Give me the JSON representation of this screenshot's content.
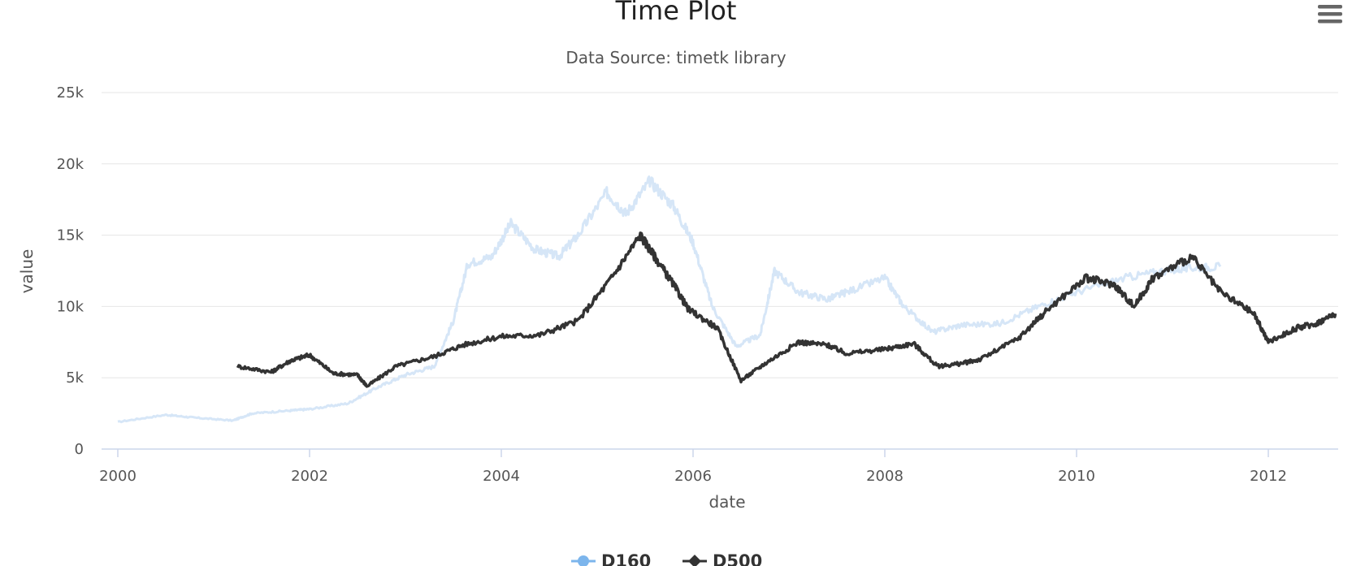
{
  "chart_data": {
    "type": "line",
    "title": "Time Plot",
    "subtitle": "Data Source: timetk library",
    "xlabel": "date",
    "ylabel": "value",
    "xlim": [
      2000,
      2012.75
    ],
    "ylim": [
      0,
      25000
    ],
    "x_ticks": [
      "2000",
      "2002",
      "2004",
      "2006",
      "2008",
      "2010",
      "2012"
    ],
    "y_ticks": [
      "0",
      "5k",
      "10k",
      "15k",
      "20k",
      "25k"
    ],
    "grid": true,
    "legend_position": "bottom",
    "series": [
      {
        "name": "D160",
        "color": "#d6e6f7",
        "legend_color": "#7cb5ec",
        "x": [
          2000.0,
          2000.5,
          2000.8,
          2001.2,
          2001.4,
          2001.8,
          2002.0,
          2002.4,
          2002.7,
          2003.0,
          2003.3,
          2003.5,
          2003.65,
          2003.9,
          2004.1,
          2004.35,
          2004.6,
          2004.8,
          2005.1,
          2005.3,
          2005.55,
          2005.8,
          2006.0,
          2006.2,
          2006.45,
          2006.7,
          2006.85,
          2007.1,
          2007.4,
          2007.6,
          2008.0,
          2008.2,
          2008.5,
          2008.8,
          2009.2,
          2009.6,
          2010.0,
          2010.5,
          2010.9,
          2011.2,
          2011.5
        ],
        "y": [
          1900,
          2400,
          2200,
          2000,
          2500,
          2700,
          2800,
          3200,
          4300,
          5200,
          5800,
          9000,
          13000,
          13500,
          15800,
          14000,
          13500,
          15000,
          18000,
          16500,
          18800,
          17000,
          14500,
          10000,
          7200,
          8000,
          12500,
          11000,
          10500,
          11000,
          12000,
          10000,
          8200,
          8700,
          8800,
          10000,
          11000,
          12000,
          12500,
          12700,
          12800
        ]
      },
      {
        "name": "D500",
        "color": "#333333",
        "legend_color": "#333333",
        "x": [
          2001.25,
          2001.6,
          2001.8,
          2002.0,
          2002.25,
          2002.5,
          2002.6,
          2002.9,
          2003.3,
          2003.6,
          2004.0,
          2004.4,
          2004.8,
          2005.15,
          2005.45,
          2005.6,
          2005.8,
          2005.95,
          2006.25,
          2006.5,
          2006.75,
          2007.1,
          2007.4,
          2007.6,
          2008.0,
          2008.3,
          2008.55,
          2008.8,
          2009.0,
          2009.4,
          2009.7,
          2010.1,
          2010.4,
          2010.6,
          2010.8,
          2011.2,
          2011.5,
          2011.85,
          2012.0,
          2012.3,
          2012.5,
          2012.7
        ],
        "y": [
          5800,
          5400,
          6200,
          6600,
          5300,
          5200,
          4400,
          5800,
          6500,
          7300,
          7900,
          8000,
          9000,
          12000,
          15000,
          13500,
          11500,
          9800,
          8500,
          4800,
          6000,
          7500,
          7300,
          6700,
          7000,
          7400,
          5800,
          6000,
          6300,
          7800,
          9800,
          12000,
          11500,
          10000,
          12000,
          13500,
          11000,
          9500,
          7500,
          8500,
          8800,
          9500
        ]
      }
    ]
  }
}
